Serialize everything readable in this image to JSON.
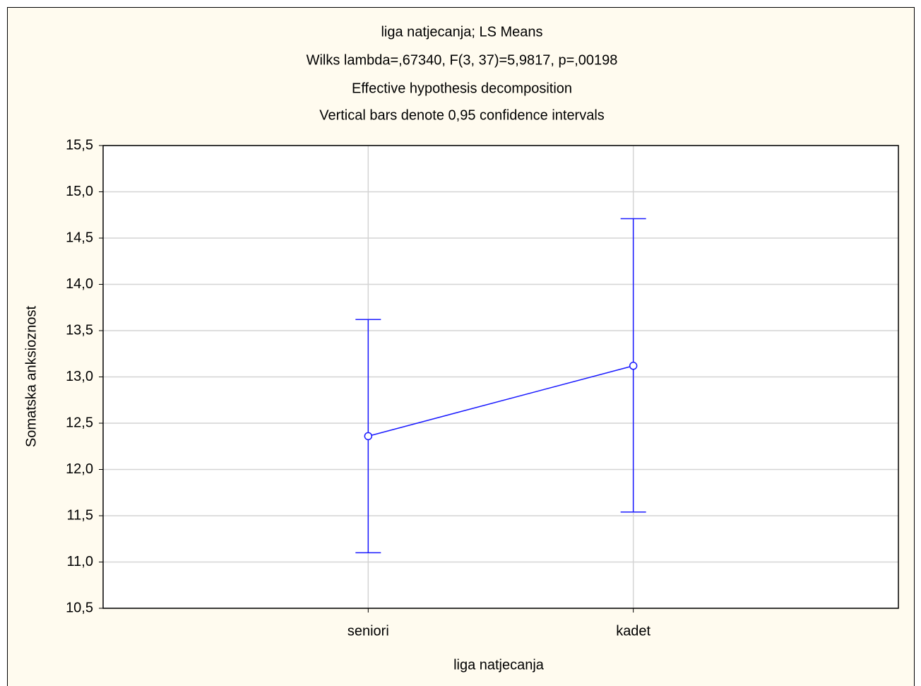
{
  "chart_data": {
    "type": "line",
    "title": "liga natjecanja; LS Means",
    "subtitles": [
      "Wilks lambda=,67340, F(3, 37)=5,9817, p=,00198",
      "Effective hypothesis decomposition",
      "Vertical bars denote 0,95 confidence intervals"
    ],
    "x_label": "liga natjecanja",
    "y_label": "Somatska anksioznost",
    "categories": [
      "seniori",
      "kadet"
    ],
    "series": [
      {
        "color": "#1a1aff",
        "values": [
          12.36,
          13.12
        ],
        "ci_lower": [
          11.1,
          11.54
        ],
        "ci_upper": [
          13.62,
          14.71
        ]
      }
    ],
    "ylim": [
      10.5,
      15.5
    ],
    "yticks": [
      {
        "value": 10.5,
        "label": "10,5"
      },
      {
        "value": 11,
        "label": "11,0"
      },
      {
        "value": 11.5,
        "label": "11,5"
      },
      {
        "value": 12,
        "label": "12,0"
      },
      {
        "value": 12.5,
        "label": "12,5"
      },
      {
        "value": 13,
        "label": "13,0"
      },
      {
        "value": 13.5,
        "label": "13,5"
      },
      {
        "value": 14,
        "label": "14,0"
      },
      {
        "value": 14.5,
        "label": "14,5"
      },
      {
        "value": 15,
        "label": "15,0"
      },
      {
        "value": 15.5,
        "label": "15,5"
      }
    ],
    "grid": true
  }
}
